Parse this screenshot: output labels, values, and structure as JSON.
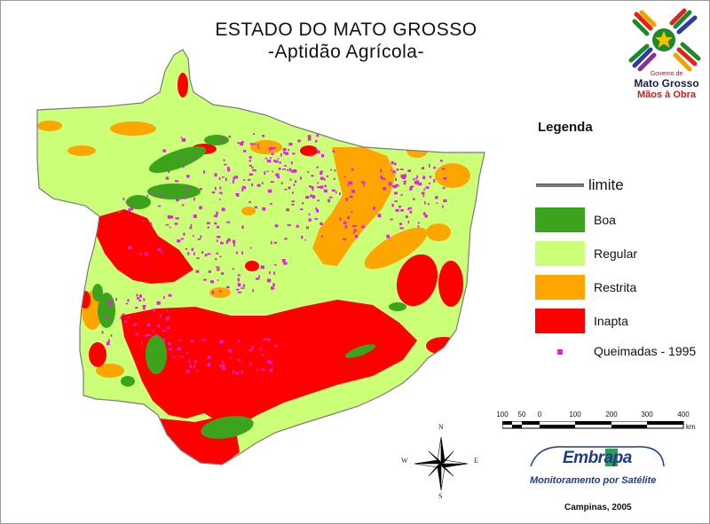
{
  "title": "ESTADO DO MATO GROSSO",
  "subtitle": "-Aptidão Agrícola-",
  "logo": {
    "line1": "Governo de",
    "line2": "Mato Grosso",
    "line3": "Mãos à Obra"
  },
  "legend": {
    "title": "Legenda",
    "items": [
      {
        "label": "limite",
        "type": "line",
        "color": "#7a7a7a"
      },
      {
        "label": "Boa",
        "type": "fill",
        "color": "#3ca41c"
      },
      {
        "label": "Regular",
        "type": "fill",
        "color": "#ccff78"
      },
      {
        "label": "Restrita",
        "type": "fill",
        "color": "#ffa500"
      },
      {
        "label": "Inapta",
        "type": "fill",
        "color": "#ff0000"
      },
      {
        "label": "Queimadas - 1995",
        "type": "point",
        "color": "#e61ee6"
      }
    ]
  },
  "scale_bar": {
    "ticks": [
      "100",
      "50",
      "0",
      "100",
      "200",
      "300",
      "400"
    ],
    "unit": "km"
  },
  "compass": {
    "n": "N",
    "s": "S",
    "e": "E",
    "w": "W"
  },
  "embrapa": {
    "name": "Embrapa",
    "tagline": "Monitoramento por Satélite"
  },
  "credit": "Campinas, 2005",
  "colors": {
    "boa": "#3ca41c",
    "regular": "#ccff78",
    "restrita": "#ffa500",
    "inapta": "#ff0000",
    "queimadas": "#e61ee6",
    "limite": "#7a7a7a"
  }
}
